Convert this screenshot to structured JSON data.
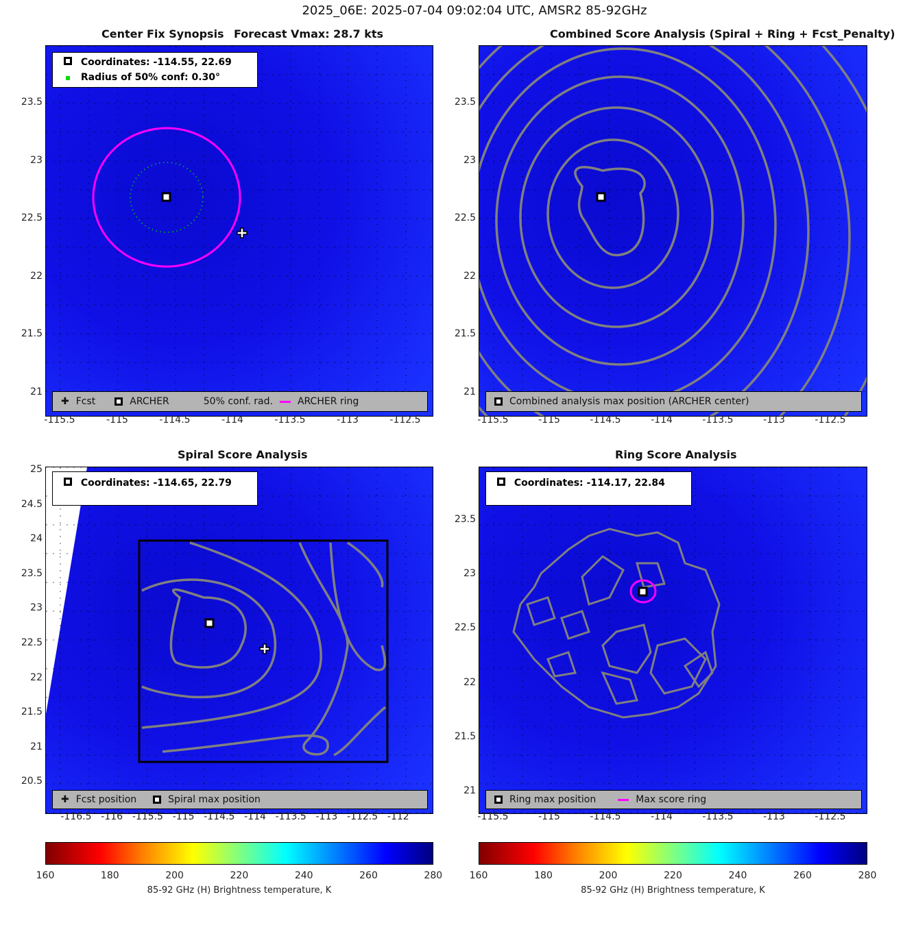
{
  "suptitle": "2025_06E: 2025-07-04 09:02:04 UTC, AMSR2 85-92GHz",
  "colors": {
    "ring": "#ff00ff",
    "conf": "#00dd00",
    "contour": "#808080",
    "legend_bg": "#b4b4b4"
  },
  "panels": {
    "synopsis": {
      "title": "Center Fix Synopsis",
      "title2": "Forecast Vmax: 28.7 kts",
      "coords": "Coordinates: -114.55, 22.69",
      "radius": "Radius of 50% conf: 0.30°",
      "legend": [
        "Fcst",
        "ARCHER",
        "50% conf. rad.",
        "ARCHER ring"
      ],
      "xticks": [
        "-115.5",
        "-115",
        "-114.5",
        "-114",
        "-113.5",
        "-113",
        "-112.5"
      ],
      "yticks": [
        "23.5",
        "23",
        "22.5",
        "22",
        "21.5",
        "21"
      ]
    },
    "combined": {
      "title": "Combined Score Analysis (Spiral + Ring + Fcst_Penalty)",
      "legend": [
        "Combined analysis max position (ARCHER center)"
      ],
      "xticks": [
        "-115.5",
        "-115",
        "-114.5",
        "-114",
        "-113.5",
        "-113",
        "-112.5"
      ],
      "yticks": [
        "23.5",
        "23",
        "22.5",
        "22",
        "21.5",
        "21"
      ]
    },
    "spiral": {
      "title": "Spiral Score Analysis",
      "coords": "Coordinates: -114.65, 22.79",
      "legend": [
        "Fcst position",
        "Spiral max position"
      ],
      "xticks": [
        "-116.5",
        "-116",
        "-115.5",
        "-115",
        "-114.5",
        "-114",
        "-113.5",
        "-113",
        "-112.5",
        "-112"
      ],
      "yticks": [
        "25",
        "24.5",
        "24",
        "23.5",
        "23",
        "22.5",
        "22",
        "21.5",
        "21",
        "20.5"
      ]
    },
    "ring": {
      "title": "Ring Score Analysis",
      "coords": "Coordinates: -114.17, 22.84",
      "legend": [
        "Ring max position",
        "Max score ring"
      ],
      "xticks": [
        "-115.5",
        "-115",
        "-114.5",
        "-114",
        "-113.5",
        "-113",
        "-112.5"
      ],
      "yticks": [
        "23.5",
        "23",
        "22.5",
        "22",
        "21.5",
        "21"
      ]
    }
  },
  "colorbar": {
    "ticks": [
      "160",
      "180",
      "200",
      "220",
      "240",
      "260",
      "280"
    ],
    "label": "85-92 GHz (H) Brightness temperature, K",
    "range": [
      160,
      280
    ]
  },
  "chart_data": {
    "type": "heatmap",
    "title": "2025_06E: 2025-07-04 09:02:04 UTC, AMSR2 85-92GHz",
    "archer_center": [
      -114.55,
      22.69
    ],
    "fcst_position": [
      -113.94,
      22.39
    ],
    "spiral_max": [
      -114.65,
      22.79
    ],
    "ring_max": [
      -114.17,
      22.84
    ],
    "conf_radius_deg": 0.3,
    "forecast_vmax_kts": 28.7,
    "clim": [
      160,
      280
    ],
    "colormap": "jet_reversed"
  }
}
